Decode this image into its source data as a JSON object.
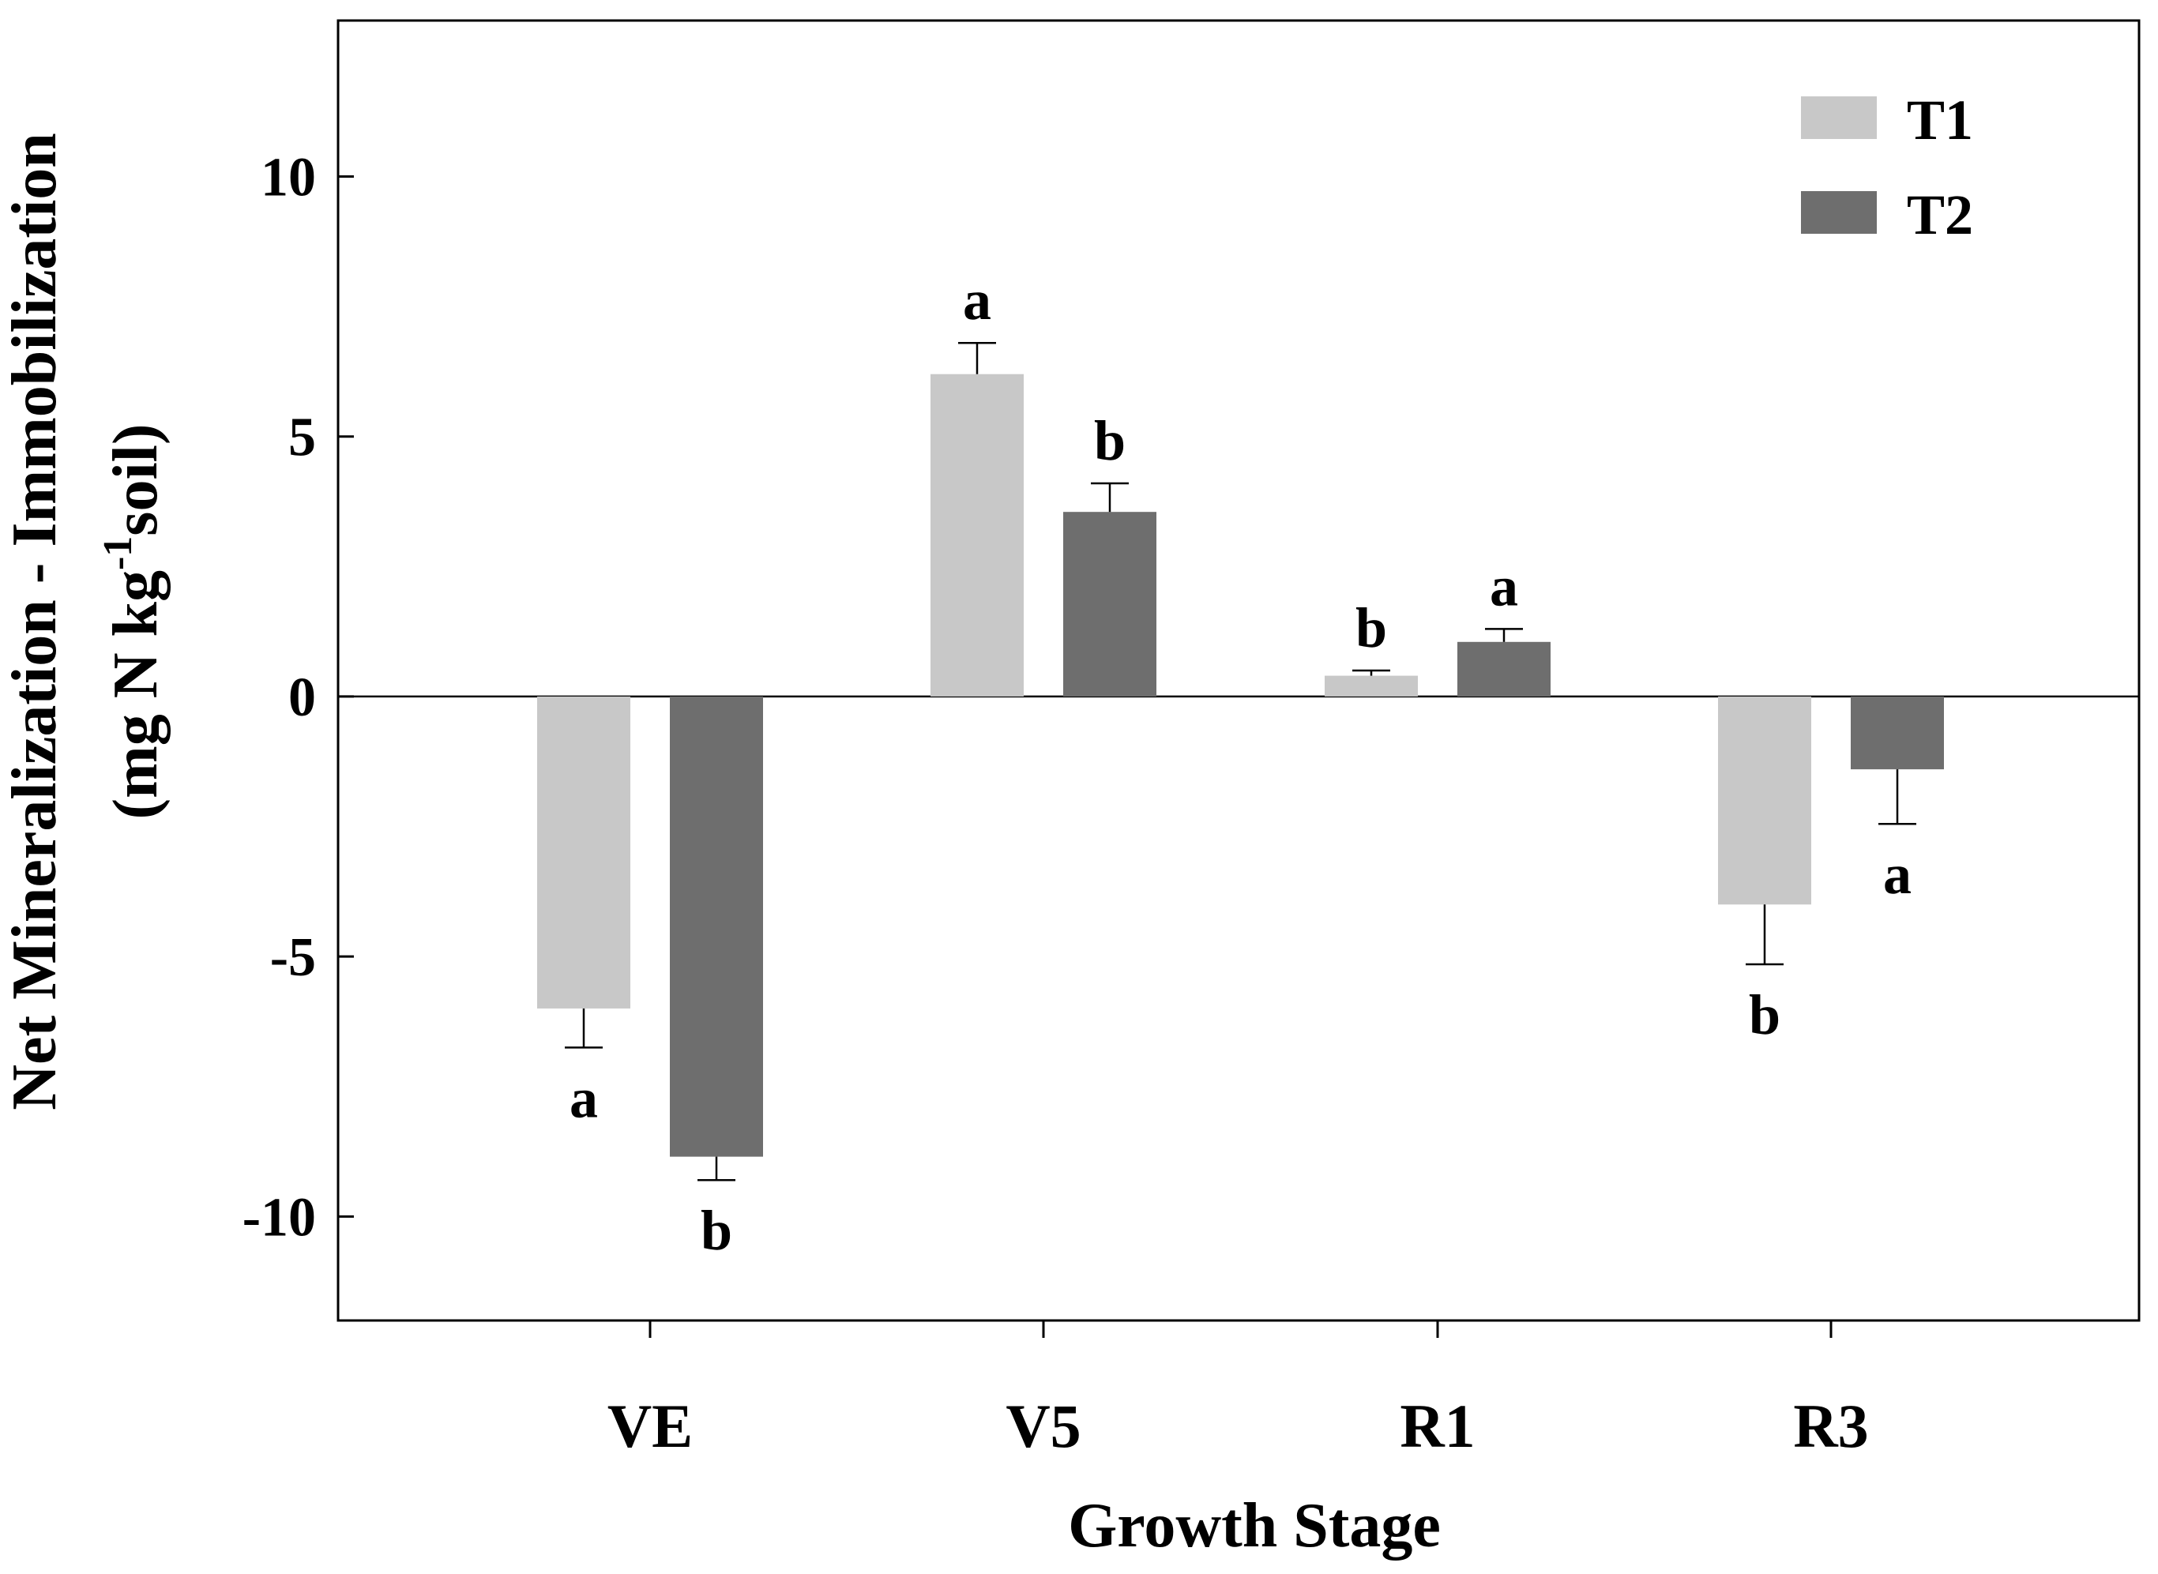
{
  "chart_data": {
    "type": "bar",
    "xlabel": "Growth Stage",
    "ylabel_line1": "Net Mineralization - Immobilization",
    "ylabel_line2_prefix": "(mg N kg",
    "ylabel_line2_sup": "-1",
    "ylabel_line2_suffix": "soil)",
    "categories": [
      "VE",
      "V5",
      "R1",
      "R3"
    ],
    "series": [
      {
        "name": "T1",
        "color": "#c8c8c8",
        "values": [
          -6.0,
          6.2,
          0.4,
          -4.0
        ],
        "errors": [
          0.75,
          0.6,
          0.1,
          1.15
        ],
        "letters": [
          "a",
          "a",
          "b",
          "b"
        ]
      },
      {
        "name": "T2",
        "color": "#6e6e6e",
        "values": [
          -8.85,
          3.55,
          1.05,
          -1.4
        ],
        "errors": [
          0.45,
          0.55,
          0.25,
          1.05
        ],
        "letters": [
          "b",
          "b",
          "a",
          "a"
        ]
      }
    ],
    "yticks": [
      "10",
      "5",
      "0",
      "-5",
      "-10"
    ],
    "ytick_values": [
      10,
      5,
      0,
      -5,
      -10
    ],
    "ylim": [
      -12,
      13
    ],
    "legend_position": "top-right",
    "grid": false
  }
}
